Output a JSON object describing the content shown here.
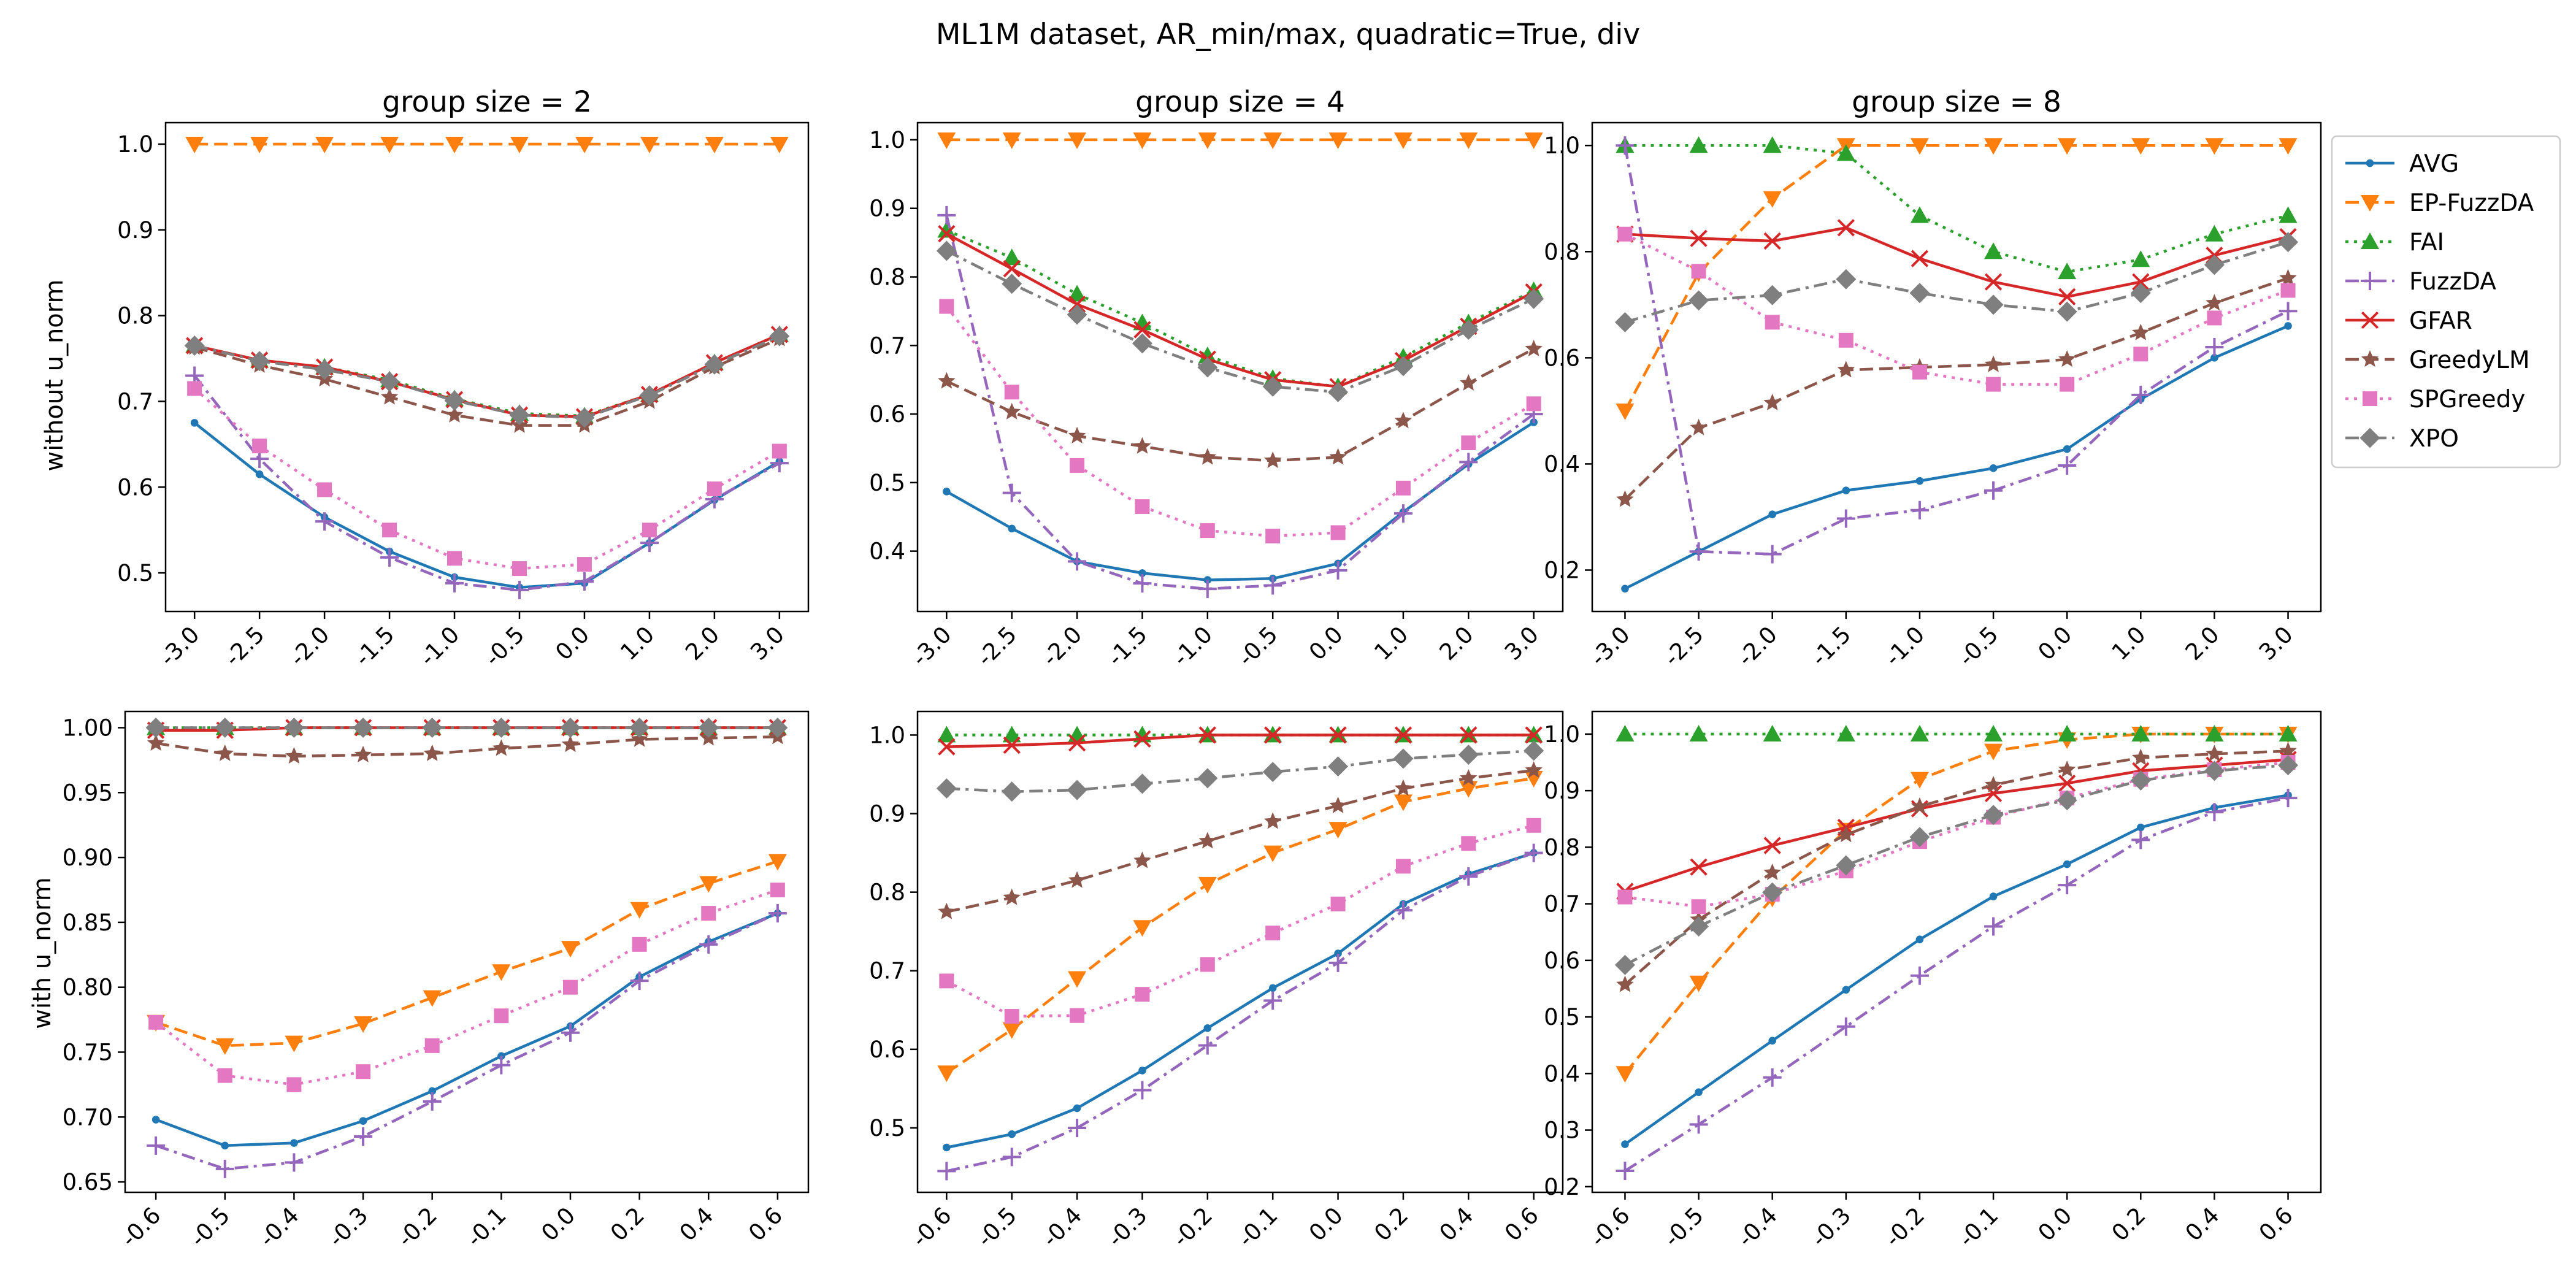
{
  "suptitle": "ML1M dataset, AR_min/max, quadratic=True, div",
  "row_labels": [
    "without u_norm",
    "with u_norm"
  ],
  "legend": [
    {
      "name": "AVG",
      "color": "#1f77b4",
      "linestyle": "solid",
      "marker": "dot"
    },
    {
      "name": "EP-FuzzDA",
      "color": "#ff7f0e",
      "linestyle": "dashed",
      "marker": "triangle-down"
    },
    {
      "name": "FAI",
      "color": "#2ca02c",
      "linestyle": "dotted",
      "marker": "triangle-up"
    },
    {
      "name": "FuzzDA",
      "color": "#9467bd",
      "linestyle": "dashdot",
      "marker": "plus"
    },
    {
      "name": "GFAR",
      "color": "#d62728",
      "linestyle": "solid",
      "marker": "x"
    },
    {
      "name": "GreedyLM",
      "color": "#8c564b",
      "linestyle": "dashed",
      "marker": "star"
    },
    {
      "name": "SPGreedy",
      "color": "#e377c2",
      "linestyle": "dotted",
      "marker": "square"
    },
    {
      "name": "XPO",
      "color": "#7f7f7f",
      "linestyle": "dashdot",
      "marker": "diamond"
    }
  ],
  "chart_data": [
    {
      "type": "line",
      "title": "group size = 2",
      "ylabel": "without u_norm",
      "categories": [
        "-3.0",
        "-2.5",
        "-2.0",
        "-1.5",
        "-1.0",
        "-0.5",
        "0.0",
        "1.0",
        "2.0",
        "3.0"
      ],
      "ylim": [
        0.455,
        1.025
      ],
      "yticks": [
        "0.5",
        "0.6",
        "0.7",
        "0.8",
        "0.9",
        "1.0"
      ],
      "series": [
        {
          "name": "AVG",
          "values": [
            0.675,
            0.615,
            0.565,
            0.525,
            0.495,
            0.483,
            0.488,
            0.535,
            0.585,
            0.63
          ]
        },
        {
          "name": "EP-FuzzDA",
          "values": [
            1.0,
            1.0,
            1.0,
            1.0,
            1.0,
            1.0,
            1.0,
            1.0,
            1.0,
            1.0
          ]
        },
        {
          "name": "FAI",
          "values": [
            0.765,
            0.748,
            0.74,
            0.725,
            0.703,
            0.686,
            0.683,
            0.708,
            0.745,
            0.778
          ]
        },
        {
          "name": "FuzzDA",
          "values": [
            0.73,
            0.633,
            0.56,
            0.518,
            0.488,
            0.48,
            0.49,
            0.535,
            0.586,
            0.628
          ]
        },
        {
          "name": "GFAR",
          "values": [
            0.765,
            0.748,
            0.74,
            0.723,
            0.702,
            0.684,
            0.682,
            0.708,
            0.745,
            0.778
          ]
        },
        {
          "name": "GreedyLM",
          "values": [
            0.763,
            0.742,
            0.726,
            0.705,
            0.684,
            0.672,
            0.672,
            0.7,
            0.74,
            0.773
          ]
        },
        {
          "name": "SPGreedy",
          "values": [
            0.715,
            0.648,
            0.597,
            0.55,
            0.517,
            0.505,
            0.51,
            0.55,
            0.598,
            0.642
          ]
        },
        {
          "name": "XPO",
          "values": [
            0.765,
            0.747,
            0.737,
            0.723,
            0.701,
            0.684,
            0.681,
            0.707,
            0.743,
            0.776
          ]
        }
      ]
    },
    {
      "type": "line",
      "title": "group size = 4",
      "ylabel": "",
      "categories": [
        "-3.0",
        "-2.5",
        "-2.0",
        "-1.5",
        "-1.0",
        "-0.5",
        "0.0",
        "1.0",
        "2.0",
        "3.0"
      ],
      "ylim": [
        0.312,
        1.025
      ],
      "yticks": [
        "0.4",
        "0.5",
        "0.6",
        "0.7",
        "0.8",
        "0.9",
        "1.0"
      ],
      "series": [
        {
          "name": "AVG",
          "values": [
            0.487,
            0.433,
            0.385,
            0.368,
            0.358,
            0.36,
            0.382,
            0.457,
            0.527,
            0.588
          ]
        },
        {
          "name": "EP-FuzzDA",
          "values": [
            1.0,
            1.0,
            1.0,
            1.0,
            1.0,
            1.0,
            1.0,
            1.0,
            1.0,
            1.0
          ]
        },
        {
          "name": "FAI",
          "values": [
            0.868,
            0.828,
            0.775,
            0.733,
            0.685,
            0.652,
            0.64,
            0.683,
            0.733,
            0.78
          ]
        },
        {
          "name": "FuzzDA",
          "values": [
            0.89,
            0.485,
            0.385,
            0.353,
            0.345,
            0.35,
            0.372,
            0.455,
            0.53,
            0.6
          ]
        },
        {
          "name": "GFAR",
          "values": [
            0.863,
            0.812,
            0.76,
            0.723,
            0.68,
            0.65,
            0.64,
            0.678,
            0.728,
            0.778
          ]
        },
        {
          "name": "GreedyLM",
          "values": [
            0.648,
            0.603,
            0.568,
            0.553,
            0.537,
            0.532,
            0.537,
            0.59,
            0.645,
            0.695
          ]
        },
        {
          "name": "SPGreedy",
          "values": [
            0.757,
            0.632,
            0.525,
            0.465,
            0.43,
            0.422,
            0.427,
            0.492,
            0.558,
            0.615
          ]
        },
        {
          "name": "XPO",
          "values": [
            0.838,
            0.79,
            0.745,
            0.703,
            0.668,
            0.64,
            0.632,
            0.67,
            0.723,
            0.768
          ]
        }
      ]
    },
    {
      "type": "line",
      "title": "group size = 8",
      "ylabel": "",
      "categories": [
        "-3.0",
        "-2.5",
        "-2.0",
        "-1.5",
        "-1.0",
        "-0.5",
        "0.0",
        "1.0",
        "2.0",
        "3.0"
      ],
      "ylim": [
        0.122,
        1.043
      ],
      "yticks": [
        "0.2",
        "0.4",
        "0.6",
        "0.8",
        "1.0"
      ],
      "series": [
        {
          "name": "AVG",
          "values": [
            0.165,
            0.235,
            0.305,
            0.35,
            0.368,
            0.392,
            0.428,
            0.522,
            0.6,
            0.66
          ]
        },
        {
          "name": "EP-FuzzDA",
          "values": [
            0.5,
            0.76,
            0.9,
            1.0,
            1.0,
            1.0,
            1.0,
            1.0,
            1.0,
            1.0
          ]
        },
        {
          "name": "FAI",
          "values": [
            1.0,
            1.0,
            1.0,
            0.985,
            0.868,
            0.8,
            0.762,
            0.785,
            0.833,
            0.868
          ]
        },
        {
          "name": "FuzzDA",
          "values": [
            1.0,
            0.235,
            0.23,
            0.297,
            0.313,
            0.35,
            0.397,
            0.53,
            0.62,
            0.688
          ]
        },
        {
          "name": "GFAR",
          "values": [
            0.833,
            0.825,
            0.82,
            0.845,
            0.787,
            0.743,
            0.715,
            0.743,
            0.793,
            0.828
          ]
        },
        {
          "name": "GreedyLM",
          "values": [
            0.333,
            0.468,
            0.515,
            0.577,
            0.582,
            0.587,
            0.597,
            0.647,
            0.703,
            0.75
          ]
        },
        {
          "name": "SPGreedy",
          "values": [
            0.833,
            0.763,
            0.667,
            0.633,
            0.573,
            0.55,
            0.55,
            0.607,
            0.675,
            0.727
          ]
        },
        {
          "name": "XPO",
          "values": [
            0.667,
            0.708,
            0.718,
            0.748,
            0.722,
            0.7,
            0.687,
            0.722,
            0.775,
            0.818
          ]
        }
      ]
    },
    {
      "type": "line",
      "title": "",
      "ylabel": "with u_norm",
      "categories": [
        "-0.6",
        "-0.5",
        "-0.4",
        "-0.3",
        "-0.2",
        "-0.1",
        "0.0",
        "0.2",
        "0.4",
        "0.6"
      ],
      "ylim": [
        0.642,
        1.0125
      ],
      "yticks": [
        "0.65",
        "0.70",
        "0.75",
        "0.80",
        "0.85",
        "0.90",
        "0.95",
        "1.00"
      ],
      "series": [
        {
          "name": "AVG",
          "values": [
            0.698,
            0.678,
            0.68,
            0.697,
            0.72,
            0.747,
            0.77,
            0.808,
            0.835,
            0.857
          ]
        },
        {
          "name": "EP-FuzzDA",
          "values": [
            0.773,
            0.755,
            0.757,
            0.772,
            0.792,
            0.812,
            0.83,
            0.86,
            0.88,
            0.897
          ]
        },
        {
          "name": "FAI",
          "values": [
            1.0,
            1.0,
            1.0,
            1.0,
            1.0,
            1.0,
            1.0,
            1.0,
            1.0,
            1.0
          ]
        },
        {
          "name": "FuzzDA",
          "values": [
            0.678,
            0.66,
            0.665,
            0.685,
            0.712,
            0.74,
            0.765,
            0.805,
            0.833,
            0.857
          ]
        },
        {
          "name": "GFAR",
          "values": [
            0.998,
            0.998,
            1.0,
            1.0,
            1.0,
            1.0,
            1.0,
            1.0,
            1.0,
            1.0
          ]
        },
        {
          "name": "GreedyLM",
          "values": [
            0.988,
            0.98,
            0.978,
            0.979,
            0.98,
            0.984,
            0.987,
            0.991,
            0.992,
            0.993
          ]
        },
        {
          "name": "SPGreedy",
          "values": [
            0.773,
            0.732,
            0.725,
            0.735,
            0.755,
            0.778,
            0.8,
            0.833,
            0.857,
            0.875
          ]
        },
        {
          "name": "XPO",
          "values": [
            1.0,
            1.0,
            1.0,
            1.0,
            1.0,
            1.0,
            1.0,
            1.0,
            1.0,
            1.0
          ]
        }
      ]
    },
    {
      "type": "line",
      "title": "",
      "ylabel": "",
      "categories": [
        "-0.6",
        "-0.5",
        "-0.4",
        "-0.3",
        "-0.2",
        "-0.1",
        "0.0",
        "0.2",
        "0.4",
        "0.6"
      ],
      "ylim": [
        0.418,
        1.03
      ],
      "yticks": [
        "0.5",
        "0.6",
        "0.7",
        "0.8",
        "0.9",
        "1.0"
      ],
      "series": [
        {
          "name": "AVG",
          "values": [
            0.475,
            0.492,
            0.525,
            0.573,
            0.627,
            0.678,
            0.722,
            0.785,
            0.823,
            0.85
          ]
        },
        {
          "name": "EP-FuzzDA",
          "values": [
            0.57,
            0.625,
            0.69,
            0.755,
            0.81,
            0.85,
            0.88,
            0.915,
            0.932,
            0.945
          ]
        },
        {
          "name": "FAI",
          "values": [
            1.0,
            1.0,
            1.0,
            1.0,
            1.0,
            1.0,
            1.0,
            1.0,
            1.0,
            1.0
          ]
        },
        {
          "name": "FuzzDA",
          "values": [
            0.445,
            0.463,
            0.5,
            0.548,
            0.605,
            0.662,
            0.71,
            0.777,
            0.82,
            0.85
          ]
        },
        {
          "name": "GFAR",
          "values": [
            0.985,
            0.987,
            0.99,
            0.995,
            1.0,
            1.0,
            1.0,
            1.0,
            1.0,
            1.0
          ]
        },
        {
          "name": "GreedyLM",
          "values": [
            0.775,
            0.793,
            0.815,
            0.84,
            0.865,
            0.89,
            0.91,
            0.932,
            0.945,
            0.955
          ]
        },
        {
          "name": "SPGreedy",
          "values": [
            0.687,
            0.642,
            0.643,
            0.67,
            0.708,
            0.748,
            0.785,
            0.833,
            0.862,
            0.885
          ]
        },
        {
          "name": "XPO",
          "values": [
            0.932,
            0.928,
            0.93,
            0.938,
            0.945,
            0.953,
            0.96,
            0.97,
            0.975,
            0.98
          ]
        }
      ]
    },
    {
      "type": "line",
      "title": "",
      "ylabel": "",
      "categories": [
        "-0.6",
        "-0.5",
        "-0.4",
        "-0.3",
        "-0.2",
        "-0.1",
        "0.0",
        "0.2",
        "0.4",
        "0.6"
      ],
      "ylim": [
        0.19,
        1.04
      ],
      "yticks": [
        "0.2",
        "0.3",
        "0.4",
        "0.5",
        "0.6",
        "0.7",
        "0.8",
        "0.9",
        "1.0"
      ],
      "series": [
        {
          "name": "AVG",
          "values": [
            0.275,
            0.367,
            0.458,
            0.548,
            0.637,
            0.713,
            0.77,
            0.835,
            0.87,
            0.892
          ]
        },
        {
          "name": "EP-FuzzDA",
          "values": [
            0.4,
            0.56,
            0.71,
            0.83,
            0.92,
            0.97,
            0.99,
            1.0,
            1.0,
            1.0
          ]
        },
        {
          "name": "FAI",
          "values": [
            1.0,
            1.0,
            1.0,
            1.0,
            1.0,
            1.0,
            1.0,
            1.0,
            1.0,
            1.0
          ]
        },
        {
          "name": "FuzzDA",
          "values": [
            0.228,
            0.31,
            0.393,
            0.483,
            0.573,
            0.66,
            0.733,
            0.813,
            0.862,
            0.887
          ]
        },
        {
          "name": "GFAR",
          "values": [
            0.722,
            0.765,
            0.803,
            0.835,
            0.868,
            0.895,
            0.913,
            0.935,
            0.945,
            0.955
          ]
        },
        {
          "name": "GreedyLM",
          "values": [
            0.557,
            0.672,
            0.755,
            0.822,
            0.872,
            0.91,
            0.937,
            0.958,
            0.965,
            0.97
          ]
        },
        {
          "name": "SPGreedy",
          "values": [
            0.712,
            0.695,
            0.717,
            0.758,
            0.81,
            0.853,
            0.887,
            0.92,
            0.937,
            0.95
          ]
        },
        {
          "name": "XPO",
          "values": [
            0.592,
            0.66,
            0.72,
            0.768,
            0.818,
            0.857,
            0.883,
            0.918,
            0.935,
            0.945
          ]
        }
      ]
    }
  ]
}
